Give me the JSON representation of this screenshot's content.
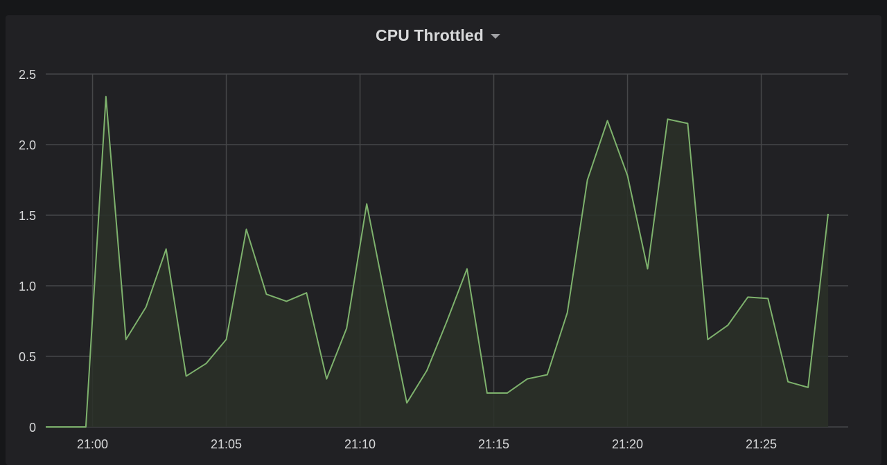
{
  "panel": {
    "title": "CPU Throttled"
  },
  "icons": {
    "title_menu": "chevron-down-icon"
  },
  "colors": {
    "background": "#161719",
    "panel": "#212124",
    "grid": "#464749",
    "series_line": "#7eb26d",
    "series_fill": "#2a3028",
    "text": "#d8d9da"
  },
  "chart_data": {
    "type": "area",
    "title": "CPU Throttled",
    "xlabel": "",
    "ylabel": "",
    "grid": true,
    "ylim": [
      0,
      2.5
    ],
    "y_ticks": [
      {
        "value": 0,
        "label": "0"
      },
      {
        "value": 0.5,
        "label": "0.5"
      },
      {
        "value": 1.0,
        "label": "1.0"
      },
      {
        "value": 1.5,
        "label": "1.5"
      },
      {
        "value": 2.0,
        "label": "2.0"
      },
      {
        "value": 2.5,
        "label": "2.5"
      }
    ],
    "x_ticks": [
      {
        "value": "21:00",
        "label": "21:00"
      },
      {
        "value": "21:05",
        "label": "21:05"
      },
      {
        "value": "21:10",
        "label": "21:10"
      },
      {
        "value": "21:15",
        "label": "21:15"
      },
      {
        "value": "21:20",
        "label": "21:20"
      },
      {
        "value": "21:25",
        "label": "21:25"
      }
    ],
    "xlim": [
      "20:58:15",
      "21:28:15"
    ],
    "series": [
      {
        "values": [
          {
            "x": "20:58:15",
            "y": 0
          },
          {
            "x": "20:59:00",
            "y": 0
          },
          {
            "x": "20:59:45",
            "y": 0
          },
          {
            "x": "21:00:30",
            "y": 2.34
          },
          {
            "x": "21:01:15",
            "y": 0.62
          },
          {
            "x": "21:02:00",
            "y": 0.85
          },
          {
            "x": "21:02:45",
            "y": 1.26
          },
          {
            "x": "21:03:30",
            "y": 0.36
          },
          {
            "x": "21:04:15",
            "y": 0.45
          },
          {
            "x": "21:05:00",
            "y": 0.62
          },
          {
            "x": "21:05:45",
            "y": 1.4
          },
          {
            "x": "21:06:30",
            "y": 0.94
          },
          {
            "x": "21:07:15",
            "y": 0.89
          },
          {
            "x": "21:08:00",
            "y": 0.95
          },
          {
            "x": "21:08:45",
            "y": 0.34
          },
          {
            "x": "21:09:30",
            "y": 0.7
          },
          {
            "x": "21:10:15",
            "y": 1.58
          },
          {
            "x": "21:11:00",
            "y": 0.86
          },
          {
            "x": "21:11:45",
            "y": 0.17
          },
          {
            "x": "21:12:30",
            "y": 0.4
          },
          {
            "x": "21:13:15",
            "y": 0.75
          },
          {
            "x": "21:14:00",
            "y": 1.12
          },
          {
            "x": "21:14:45",
            "y": 0.24
          },
          {
            "x": "21:15:30",
            "y": 0.24
          },
          {
            "x": "21:16:15",
            "y": 0.34
          },
          {
            "x": "21:17:00",
            "y": 0.37
          },
          {
            "x": "21:17:45",
            "y": 0.81
          },
          {
            "x": "21:18:30",
            "y": 1.75
          },
          {
            "x": "21:19:15",
            "y": 2.17
          },
          {
            "x": "21:20:00",
            "y": 1.78
          },
          {
            "x": "21:20:45",
            "y": 1.12
          },
          {
            "x": "21:21:30",
            "y": 2.18
          },
          {
            "x": "21:22:15",
            "y": 2.15
          },
          {
            "x": "21:23:00",
            "y": 0.62
          },
          {
            "x": "21:23:45",
            "y": 0.72
          },
          {
            "x": "21:24:30",
            "y": 0.92
          },
          {
            "x": "21:25:15",
            "y": 0.91
          },
          {
            "x": "21:26:00",
            "y": 0.32
          },
          {
            "x": "21:26:45",
            "y": 0.28
          },
          {
            "x": "21:27:30",
            "y": 1.51
          }
        ]
      }
    ]
  }
}
